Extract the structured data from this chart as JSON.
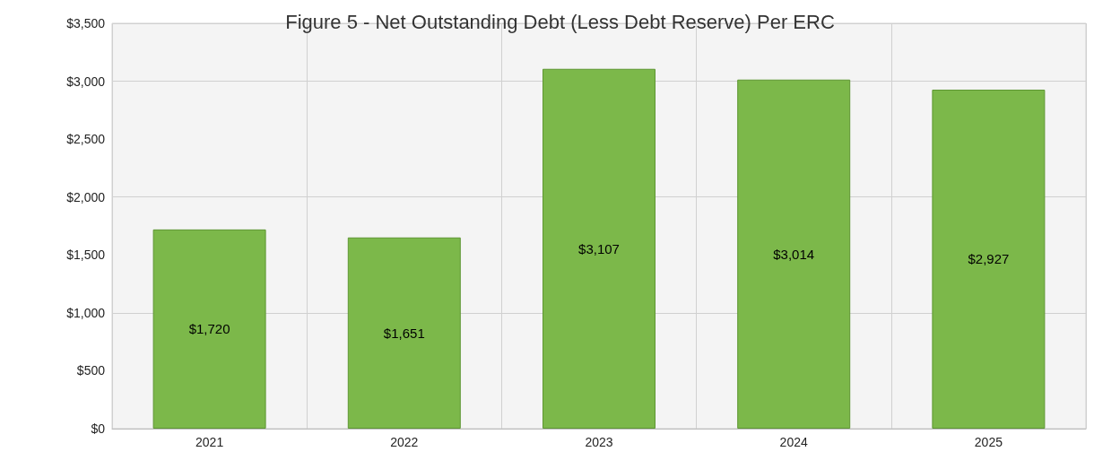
{
  "chart_data": {
    "type": "bar",
    "title": "Figure 5 - Net Outstanding Debt (Less Debt Reserve) Per ERC",
    "categories": [
      "2021",
      "2022",
      "2023",
      "2024",
      "2025"
    ],
    "values": [
      1720,
      1651,
      3107,
      3014,
      2927
    ],
    "value_labels": [
      "$1,720",
      "$1,651",
      "$3,107",
      "$3,014",
      "$2,927"
    ],
    "color": "#7cb84a",
    "ylim": [
      0,
      3500
    ],
    "yticks": [
      {
        "value": 0,
        "label": "$0"
      },
      {
        "value": 500,
        "label": "$500"
      },
      {
        "value": 1000,
        "label": "$1,000"
      },
      {
        "value": 1500,
        "label": "$1,500"
      },
      {
        "value": 2000,
        "label": "$2,000"
      },
      {
        "value": 2500,
        "label": "$2,500"
      },
      {
        "value": 3000,
        "label": "$3,000"
      },
      {
        "value": 3500,
        "label": "$3,500"
      }
    ],
    "grid": true
  }
}
